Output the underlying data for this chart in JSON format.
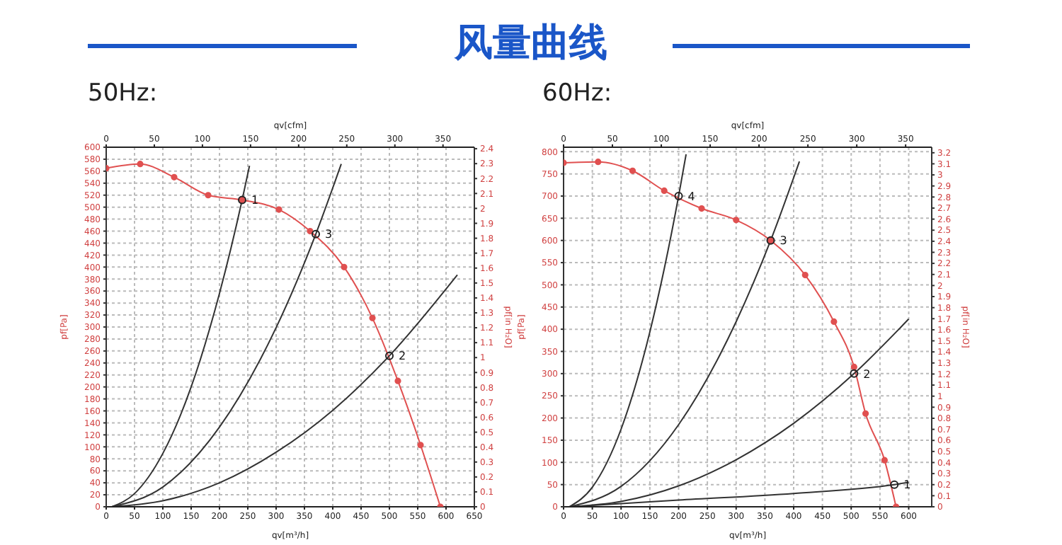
{
  "chart_data": [
    {
      "type": "line",
      "title": "风量曲线",
      "subtitle": "50Hz:",
      "xlabel": "qv[m³/h]",
      "x2label": "qv[cfm]",
      "ylabel": "pf[Pa]",
      "y2label": "pf[in H₂O]",
      "grid": true,
      "xlim": [
        0,
        650
      ],
      "xticks": [
        0,
        50,
        100,
        150,
        200,
        250,
        300,
        350,
        400,
        450,
        500,
        550,
        600,
        650
      ],
      "ylim": [
        0,
        600
      ],
      "yticks": [
        0,
        20,
        40,
        60,
        80,
        100,
        120,
        140,
        160,
        180,
        200,
        220,
        240,
        260,
        280,
        300,
        320,
        340,
        360,
        380,
        400,
        420,
        440,
        460,
        480,
        500,
        520,
        540,
        560,
        580,
        600
      ],
      "x2lim": [
        0,
        382.6
      ],
      "x2ticks": [
        0,
        50,
        100,
        150,
        200,
        250,
        300,
        350
      ],
      "y2lim": [
        0,
        2.41
      ],
      "y2ticks": [
        0,
        0.1,
        0.2,
        0.3,
        0.4,
        0.5,
        0.6,
        0.7,
        0.8,
        0.9,
        1,
        1.1,
        1.2,
        1.3,
        1.4,
        1.5,
        1.6,
        1.7,
        1.8,
        1.9,
        2,
        2.1,
        2.2,
        2.3,
        2.4
      ],
      "series": [
        {
          "color": "#e05050",
          "marker": "circle",
          "x": [
            0,
            60,
            120,
            180,
            240,
            305,
            360,
            420,
            470,
            515,
            555,
            590
          ],
          "values": [
            565,
            572,
            550,
            520,
            512,
            496,
            460,
            400,
            315,
            210,
            103,
            0
          ]
        },
        {
          "color": "#333333",
          "marker": "none",
          "x": [
            10,
            50,
            100,
            150,
            200,
            240,
            253
          ],
          "values": [
            0,
            22,
            89,
            200,
            356,
            512,
            569
          ]
        },
        {
          "color": "#333333",
          "marker": "none",
          "x": [
            10,
            100,
            200,
            300,
            370,
            415
          ],
          "values": [
            0,
            33,
            133,
            299,
            455,
            572
          ]
        },
        {
          "color": "#333333",
          "marker": "none",
          "x": [
            10,
            100,
            200,
            300,
            400,
            500,
            620
          ],
          "values": [
            0,
            10,
            40,
            91,
            161,
            252,
            387
          ]
        }
      ],
      "annotations": [
        {
          "text": "1",
          "x": 240,
          "y": 512
        },
        {
          "text": "3",
          "x": 370,
          "y": 455
        },
        {
          "text": "2",
          "x": 500,
          "y": 252
        }
      ]
    },
    {
      "type": "line",
      "subtitle": "60Hz:",
      "xlabel": "qv[m³/h]",
      "x2label": "qv[cfm]",
      "ylabel": "pf[Pa]",
      "y2label": "pf[in H₂O]",
      "grid": true,
      "xlim": [
        0,
        640
      ],
      "xticks": [
        0,
        50,
        100,
        150,
        200,
        250,
        300,
        350,
        400,
        450,
        500,
        550,
        600
      ],
      "ylim": [
        0,
        810
      ],
      "yticks": [
        0,
        50,
        100,
        150,
        200,
        250,
        300,
        350,
        400,
        450,
        500,
        550,
        600,
        650,
        700,
        750,
        800
      ],
      "x2lim": [
        0,
        376.7
      ],
      "x2ticks": [
        0,
        50,
        100,
        150,
        200,
        250,
        300,
        350
      ],
      "y2lim": [
        0,
        3.25
      ],
      "y2ticks": [
        0,
        0.1,
        0.2,
        0.3,
        0.4,
        0.5,
        0.6,
        0.7,
        0.8,
        0.9,
        1,
        1.1,
        1.2,
        1.3,
        1.4,
        1.5,
        1.6,
        1.7,
        1.8,
        1.9,
        2,
        2.1,
        2.2,
        2.3,
        2.4,
        2.5,
        2.6,
        2.7,
        2.8,
        2.9,
        3,
        3.1,
        3.2
      ],
      "series": [
        {
          "color": "#e05050",
          "marker": "circle",
          "x": [
            0,
            60,
            120,
            175,
            240,
            300,
            360,
            420,
            470,
            505,
            525,
            558,
            578
          ],
          "values": [
            775,
            777,
            757,
            712,
            672,
            646,
            600,
            522,
            417,
            315,
            210,
            105,
            0
          ]
        },
        {
          "color": "#333333",
          "marker": "none",
          "x": [
            10,
            50,
            100,
            150,
            200,
            213
          ],
          "values": [
            0,
            44,
            175,
            394,
            700,
            794
          ]
        },
        {
          "color": "#333333",
          "marker": "none",
          "x": [
            10,
            100,
            200,
            300,
            360,
            410
          ],
          "values": [
            0,
            46,
            185,
            417,
            600,
            778
          ]
        },
        {
          "color": "#333333",
          "marker": "none",
          "x": [
            10,
            100,
            200,
            300,
            400,
            505,
            600
          ],
          "values": [
            0,
            12,
            47,
            106,
            188,
            300,
            423
          ]
        },
        {
          "color": "#333333",
          "marker": "none",
          "x": [
            10,
            200,
            400,
            575,
            600
          ],
          "values": [
            0,
            15,
            30,
            50,
            55
          ]
        }
      ],
      "annotations": [
        {
          "text": "4",
          "x": 200,
          "y": 700
        },
        {
          "text": "3",
          "x": 360,
          "y": 600
        },
        {
          "text": "2",
          "x": 505,
          "y": 300
        },
        {
          "text": "1",
          "x": 575,
          "y": 50
        }
      ]
    }
  ]
}
